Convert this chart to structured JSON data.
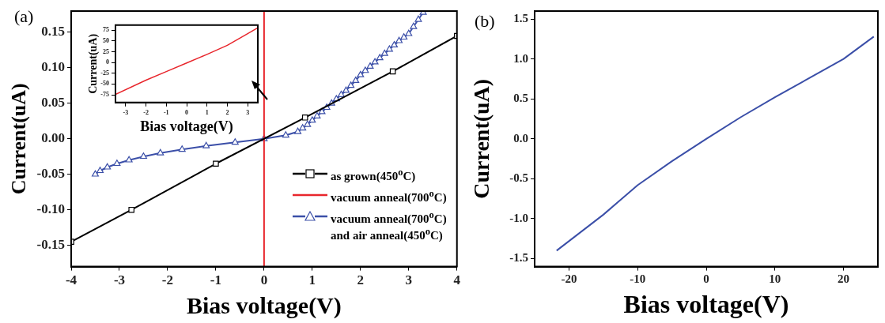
{
  "chart_data": [
    {
      "type": "line",
      "title": "(a)",
      "xlabel": "Bias voltage(V)",
      "ylabel": "Current(uA)",
      "xlim": [
        -4,
        4
      ],
      "xticks": [
        -4,
        -3,
        -2,
        -1,
        0,
        1,
        2,
        3,
        4
      ],
      "ylim": [
        -0.18,
        0.18
      ],
      "yticks": [
        {
          "value": -0.15,
          "label": "-0.15"
        },
        {
          "value": -0.1,
          "label": "-0.10"
        },
        {
          "value": -0.05,
          "label": "-0.05"
        },
        {
          "value": 0,
          "label": "0.00"
        },
        {
          "value": 0.05,
          "label": "0.05"
        },
        {
          "value": 0.1,
          "label": "0.10"
        },
        {
          "value": 0.15,
          "label": "0.15"
        }
      ],
      "grid": false,
      "legend": "right",
      "series": [
        {
          "name": "as grown(450$^{o}$C)",
          "color": "#000000",
          "marker": "square",
          "x": [
            -4,
            -2.75,
            -1,
            0.85,
            2.67,
            4
          ],
          "values": [
            -0.145,
            -0.1,
            -0.035,
            0.03,
            0.095,
            0.145
          ]
        },
        {
          "name": "vacuum anneal(700$^{o}$C)",
          "color": "#e8262c",
          "marker": "none",
          "x": [
            0,
            0
          ],
          "values": [
            -0.18,
            0.18
          ]
        },
        {
          "name": "vacuum anneal(700$^{o}$C) and air anneal(450$^{o}$C)",
          "color": "#3b4fa8",
          "marker": "triangle",
          "x": [
            -3.5,
            -3.4,
            -3.25,
            -3.05,
            -2.8,
            -2.5,
            -2.15,
            -1.7,
            -1.2,
            -0.6,
            0,
            0.45,
            0.7,
            0.8,
            0.9,
            1.0,
            1.1,
            1.2,
            1.3,
            1.4,
            1.5,
            1.6,
            1.7,
            1.8,
            1.9,
            2.0,
            2.1,
            2.2,
            2.3,
            2.4,
            2.5,
            2.6,
            2.7,
            2.8,
            2.9,
            3.0,
            3.1,
            3.2,
            3.3
          ],
          "values": [
            -0.05,
            -0.045,
            -0.04,
            -0.035,
            -0.03,
            -0.025,
            -0.02,
            -0.015,
            -0.01,
            -0.005,
            0,
            0.005,
            0.01,
            0.015,
            0.02,
            0.026,
            0.032,
            0.038,
            0.044,
            0.05,
            0.056,
            0.062,
            0.068,
            0.075,
            0.082,
            0.09,
            0.096,
            0.102,
            0.108,
            0.114,
            0.12,
            0.126,
            0.132,
            0.138,
            0.143,
            0.148,
            0.158,
            0.168,
            0.178
          ]
        }
      ]
    },
    {
      "type": "line",
      "xlabel": "Bias voltage(V)",
      "ylabel": "Current(uA)",
      "xlim": [
        -3.5,
        3.5
      ],
      "xticks": [
        -3,
        -2,
        -1,
        0,
        1,
        2,
        3
      ],
      "ylim": [
        -93,
        87
      ],
      "yticks": [
        -75,
        -50,
        -25,
        0,
        25,
        50,
        75
      ],
      "grid": false,
      "series": [
        {
          "color": "#e8262c",
          "marker": "none",
          "x": [
            -3.5,
            -2,
            -1,
            0,
            1,
            2,
            3,
            3.5
          ],
          "values": [
            -74,
            -41,
            -21,
            -1,
            19,
            40,
            67,
            81
          ]
        }
      ]
    },
    {
      "type": "line",
      "title": "(b)",
      "xlabel": "Bias voltage(V)",
      "ylabel": "Current(uA)",
      "xlim": [
        -25,
        25
      ],
      "xticks": [
        -20,
        -10,
        0,
        10,
        20
      ],
      "ylim": [
        -1.6,
        1.6
      ],
      "yticks": [
        {
          "value": -1.5,
          "label": "-1.5"
        },
        {
          "value": -1,
          "label": "-1.0"
        },
        {
          "value": -0.5,
          "label": "-0.5"
        },
        {
          "value": 0,
          "label": "0.0"
        },
        {
          "value": 0.5,
          "label": "0.5"
        },
        {
          "value": 1,
          "label": "1.0"
        },
        {
          "value": 1.5,
          "label": "1.5"
        }
      ],
      "grid": false,
      "series": [
        {
          "color": "#3b4fa8",
          "marker": "none",
          "x": [
            -21.8,
            -15,
            -10,
            -5,
            0,
            5,
            10,
            15,
            20,
            24.4
          ],
          "values": [
            -1.4,
            -0.95,
            -0.58,
            -0.28,
            0,
            0.27,
            0.52,
            0.76,
            1.0,
            1.28
          ]
        }
      ]
    }
  ]
}
